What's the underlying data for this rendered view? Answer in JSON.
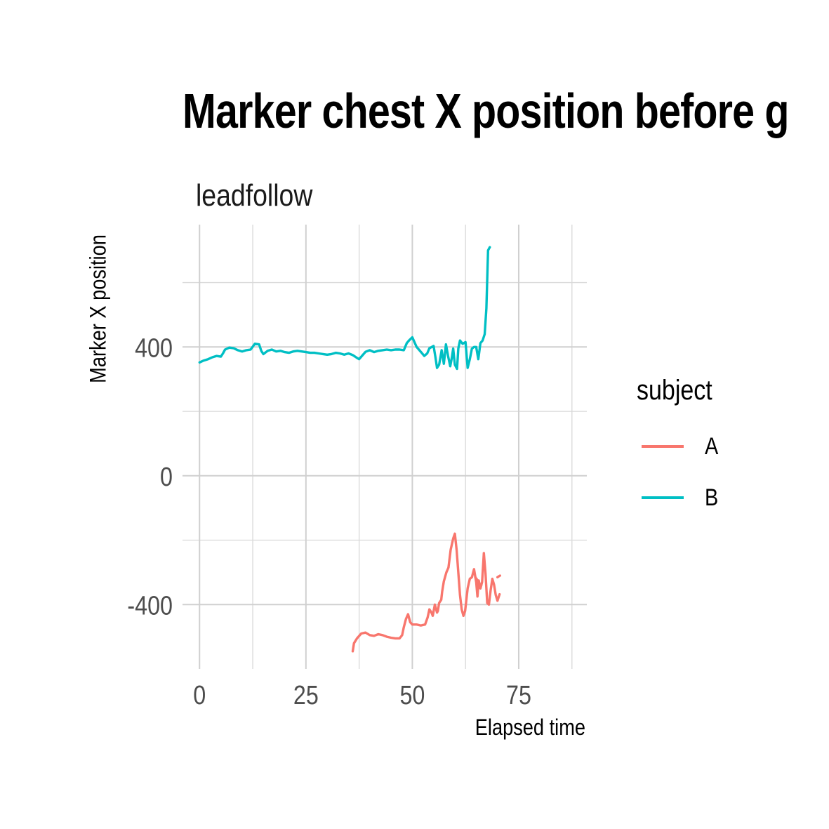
{
  "chart_data": {
    "type": "line",
    "title": "Marker chest X position before g",
    "subtitle": "leadfollow",
    "xlabel": "Elapsed time",
    "ylabel": "Marker X position",
    "xlim": [
      -4,
      91
    ],
    "ylim": [
      -600,
      780
    ],
    "x_ticks": [
      0,
      25,
      50,
      75
    ],
    "y_ticks": [
      -400,
      0,
      400
    ],
    "grid": true,
    "legend": {
      "title": "subject",
      "placement": "right"
    },
    "series": [
      {
        "name": "A",
        "color": "#F8766D",
        "points": [
          [
            36.0,
            -545
          ],
          [
            36.3,
            -520
          ],
          [
            37.0,
            -505
          ],
          [
            38.0,
            -490
          ],
          [
            39.0,
            -487
          ],
          [
            40.0,
            -495
          ],
          [
            41.0,
            -497
          ],
          [
            42.0,
            -492
          ],
          [
            43.0,
            -495
          ],
          [
            44.0,
            -500
          ],
          [
            45.0,
            -503
          ],
          [
            46.0,
            -505
          ],
          [
            47.0,
            -505
          ],
          [
            47.6,
            -495
          ],
          [
            48.0,
            -470
          ],
          [
            48.5,
            -445
          ],
          [
            49.0,
            -430
          ],
          [
            49.5,
            -455
          ],
          [
            50.0,
            -462
          ],
          [
            51.0,
            -462
          ],
          [
            52.0,
            -465
          ],
          [
            53.0,
            -462
          ],
          [
            53.6,
            -440
          ],
          [
            54.0,
            -415
          ],
          [
            54.5,
            -425
          ],
          [
            54.8,
            -435
          ],
          [
            55.3,
            -400
          ],
          [
            55.8,
            -425
          ],
          [
            56.0,
            -420
          ],
          [
            56.3,
            -395
          ],
          [
            56.8,
            -385
          ],
          [
            57.0,
            -360
          ],
          [
            57.4,
            -328
          ],
          [
            58.0,
            -300
          ],
          [
            58.5,
            -285
          ],
          [
            59.0,
            -230
          ],
          [
            59.6,
            -195
          ],
          [
            60.0,
            -180
          ],
          [
            60.4,
            -230
          ],
          [
            60.8,
            -300
          ],
          [
            61.2,
            -370
          ],
          [
            61.6,
            -415
          ],
          [
            62.0,
            -435
          ],
          [
            62.4,
            -420
          ],
          [
            63.0,
            -350
          ],
          [
            63.5,
            -320
          ],
          [
            64.0,
            -315
          ],
          [
            64.5,
            -290
          ],
          [
            65.0,
            -330
          ],
          [
            65.3,
            -375
          ],
          [
            65.6,
            -325
          ],
          [
            66.0,
            -350
          ],
          [
            66.4,
            -330
          ],
          [
            66.8,
            -240
          ],
          [
            67.2,
            -305
          ],
          [
            67.6,
            -395
          ],
          [
            68.0,
            -400
          ],
          [
            68.4,
            -355
          ],
          [
            68.8,
            -320
          ],
          [
            69.2,
            -338
          ],
          [
            69.6,
            -370
          ],
          [
            70.0,
            -388
          ],
          [
            70.5,
            -368
          ]
        ],
        "dashed_segments": [
          [
            [
              64.8,
              -315
            ],
            [
              66.2,
              -340
            ]
          ],
          [
            [
              70.0,
              -315
            ],
            [
              70.6,
              -310
            ]
          ]
        ]
      },
      {
        "name": "B",
        "color": "#00BFC4",
        "points": [
          [
            0.0,
            352
          ],
          [
            1.0,
            358
          ],
          [
            2.0,
            362
          ],
          [
            3.0,
            368
          ],
          [
            4.0,
            372
          ],
          [
            5.0,
            370
          ],
          [
            5.5,
            380
          ],
          [
            6.0,
            392
          ],
          [
            7.0,
            398
          ],
          [
            8.0,
            396
          ],
          [
            9.0,
            390
          ],
          [
            10.0,
            386
          ],
          [
            11.0,
            390
          ],
          [
            12.0,
            392
          ],
          [
            13.0,
            410
          ],
          [
            14.0,
            408
          ],
          [
            14.5,
            388
          ],
          [
            15.0,
            378
          ],
          [
            16.0,
            388
          ],
          [
            17.0,
            392
          ],
          [
            18.0,
            386
          ],
          [
            19.0,
            388
          ],
          [
            20.0,
            384
          ],
          [
            21.0,
            382
          ],
          [
            22.0,
            386
          ],
          [
            23.0,
            388
          ],
          [
            24.0,
            386
          ],
          [
            25.0,
            384
          ],
          [
            26.0,
            382
          ],
          [
            27.0,
            382
          ],
          [
            28.0,
            380
          ],
          [
            29.0,
            378
          ],
          [
            30.0,
            376
          ],
          [
            31.0,
            378
          ],
          [
            32.0,
            382
          ],
          [
            33.0,
            380
          ],
          [
            34.0,
            376
          ],
          [
            35.0,
            380
          ],
          [
            36.0,
            375
          ],
          [
            37.0,
            366
          ],
          [
            37.5,
            362
          ],
          [
            38.0,
            370
          ],
          [
            39.0,
            385
          ],
          [
            40.0,
            390
          ],
          [
            41.0,
            384
          ],
          [
            42.0,
            388
          ],
          [
            43.0,
            390
          ],
          [
            44.0,
            392
          ],
          [
            45.0,
            390
          ],
          [
            46.0,
            392
          ],
          [
            47.0,
            392
          ],
          [
            48.0,
            390
          ],
          [
            48.7,
            412
          ],
          [
            49.2,
            420
          ],
          [
            50.0,
            430
          ],
          [
            51.0,
            400
          ],
          [
            52.0,
            385
          ],
          [
            52.8,
            372
          ],
          [
            53.5,
            380
          ],
          [
            54.0,
            396
          ],
          [
            55.0,
            403
          ],
          [
            55.4,
            370
          ],
          [
            55.8,
            335
          ],
          [
            56.3,
            345
          ],
          [
            56.9,
            390
          ],
          [
            57.4,
            348
          ],
          [
            57.9,
            408
          ],
          [
            58.4,
            372
          ],
          [
            58.9,
            340
          ],
          [
            59.3,
            368
          ],
          [
            59.6,
            395
          ],
          [
            60.0,
            345
          ],
          [
            60.5,
            332
          ],
          [
            60.8,
            395
          ],
          [
            61.2,
            420
          ],
          [
            61.8,
            410
          ],
          [
            62.5,
            415
          ],
          [
            63.0,
            335
          ],
          [
            63.5,
            362
          ],
          [
            64.0,
            395
          ],
          [
            64.5,
            400
          ],
          [
            65.0,
            400
          ],
          [
            65.5,
            362
          ],
          [
            66.0,
            412
          ],
          [
            66.5,
            420
          ],
          [
            67.0,
            440
          ],
          [
            67.4,
            520
          ],
          [
            67.8,
            700
          ],
          [
            68.2,
            710
          ]
        ]
      }
    ]
  }
}
